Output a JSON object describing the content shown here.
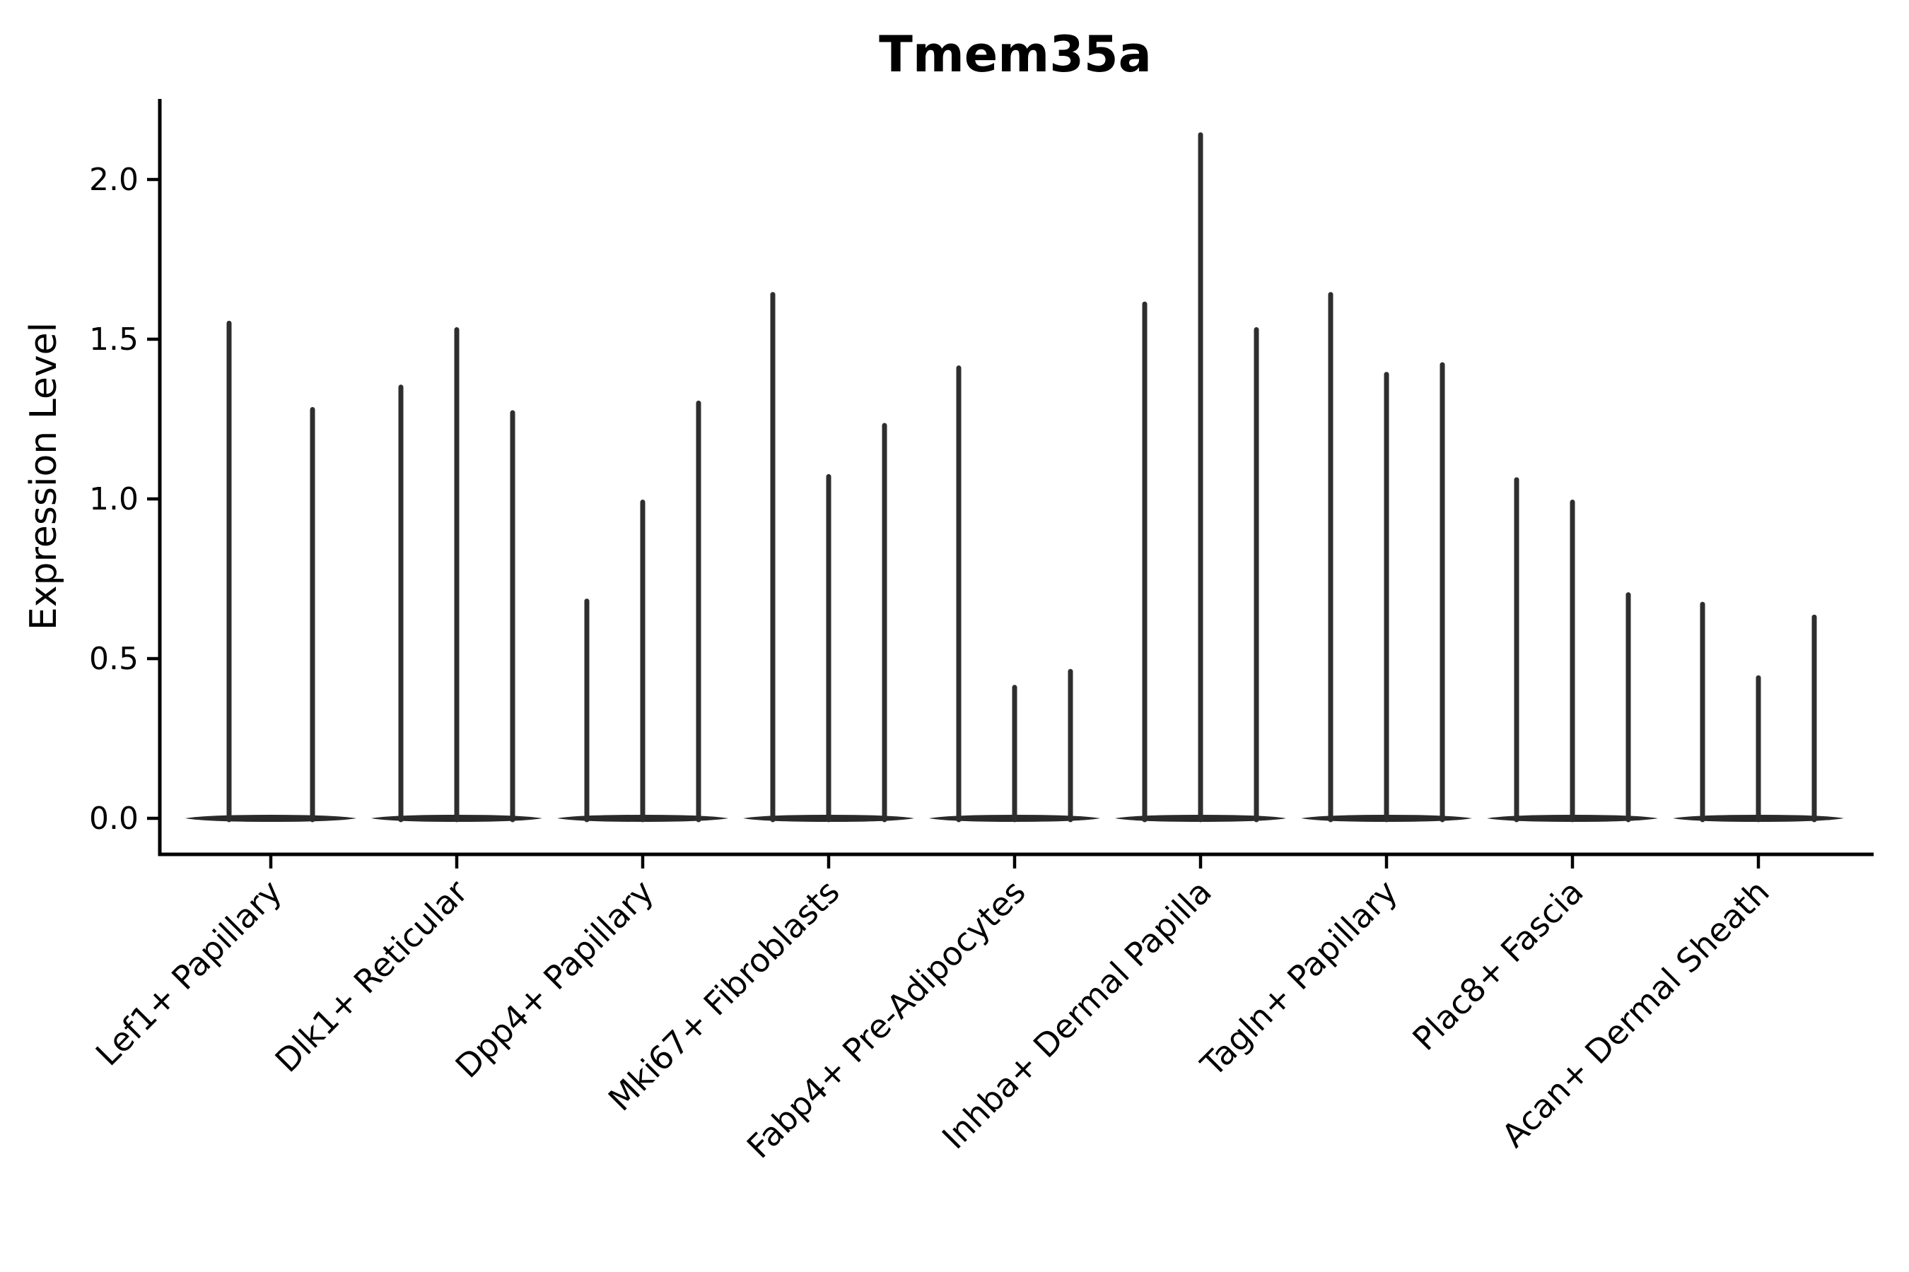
{
  "title": "Tmem35a",
  "y_axis_label": "Expression Level",
  "chart_data": {
    "type": "violin",
    "title": "Tmem35a",
    "ylabel": "Expression Level",
    "xlabel": "",
    "ylim": [
      -0.11,
      2.25
    ],
    "yticks": [
      0.0,
      0.5,
      1.0,
      1.5,
      2.0
    ],
    "ytick_labels": [
      "0.0",
      "0.5",
      "1.0",
      "1.5",
      "2.0"
    ],
    "grid": false,
    "legend_position": "none",
    "categories": [
      "Lef1+ Papillary",
      "Dlk1+ Reticular",
      "Dpp4+ Papillary",
      "Mki67+ Fibroblasts",
      "Fabp4+ Pre-Adipocytes",
      "Inhba+ Dermal Papilla",
      "Tagln+ Papillary",
      "Plac8+ Fascia",
      "Acan+ Dermal Sheath"
    ],
    "series": [
      {
        "category": "Lef1+ Papillary",
        "violin_max": [
          1.55,
          1.28
        ]
      },
      {
        "category": "Dlk1+ Reticular",
        "violin_max": [
          1.35,
          1.53,
          1.27
        ]
      },
      {
        "category": "Dpp4+ Papillary",
        "violin_max": [
          0.68,
          0.99,
          1.3
        ]
      },
      {
        "category": "Mki67+ Fibroblasts",
        "violin_max": [
          1.64,
          1.07,
          1.23
        ]
      },
      {
        "category": "Fabp4+ Pre-Adipocytes",
        "violin_max": [
          1.41,
          0.41,
          0.46
        ]
      },
      {
        "category": "Inhba+ Dermal Papilla",
        "violin_max": [
          1.61,
          2.14,
          1.53
        ]
      },
      {
        "category": "Tagln+ Papillary",
        "violin_max": [
          1.64,
          1.39,
          1.42
        ]
      },
      {
        "category": "Plac8+ Fascia",
        "violin_max": [
          1.06,
          0.99,
          0.7
        ]
      },
      {
        "category": "Acan+ Dermal Sheath",
        "violin_max": [
          0.67,
          0.44,
          0.63
        ]
      }
    ],
    "shape_note": "All violins are collapsed at expression 0 (wide flat lens-shaped base) with a single narrow density spike rising to the max value",
    "colors": {
      "violin": "#2e2e2e",
      "violin_base": "#2a2a2a",
      "axis": "#000000",
      "text": "#000000",
      "background": "#ffffff"
    }
  }
}
